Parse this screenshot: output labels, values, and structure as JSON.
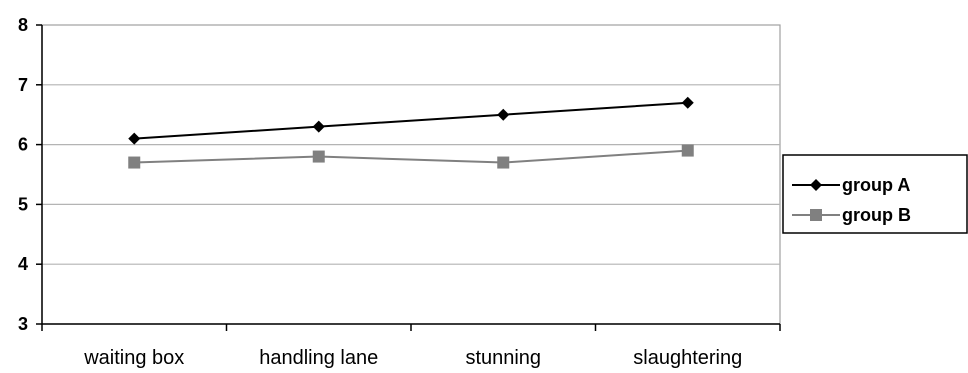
{
  "chart_data": {
    "type": "line",
    "categories": [
      "waiting box",
      "handling lane",
      "stunning",
      "slaughtering"
    ],
    "series": [
      {
        "name": "group A",
        "values": [
          6.1,
          6.3,
          6.5,
          6.7
        ],
        "color": "#000000",
        "marker": "diamond"
      },
      {
        "name": "group B",
        "values": [
          5.7,
          5.8,
          5.7,
          5.9
        ],
        "color": "#808080",
        "marker": "square"
      }
    ],
    "ylim": [
      3,
      8
    ],
    "yticks": [
      3,
      4,
      5,
      6,
      7,
      8
    ],
    "grid": true,
    "legend_position": "right",
    "title": "",
    "xlabel": "",
    "ylabel": ""
  }
}
